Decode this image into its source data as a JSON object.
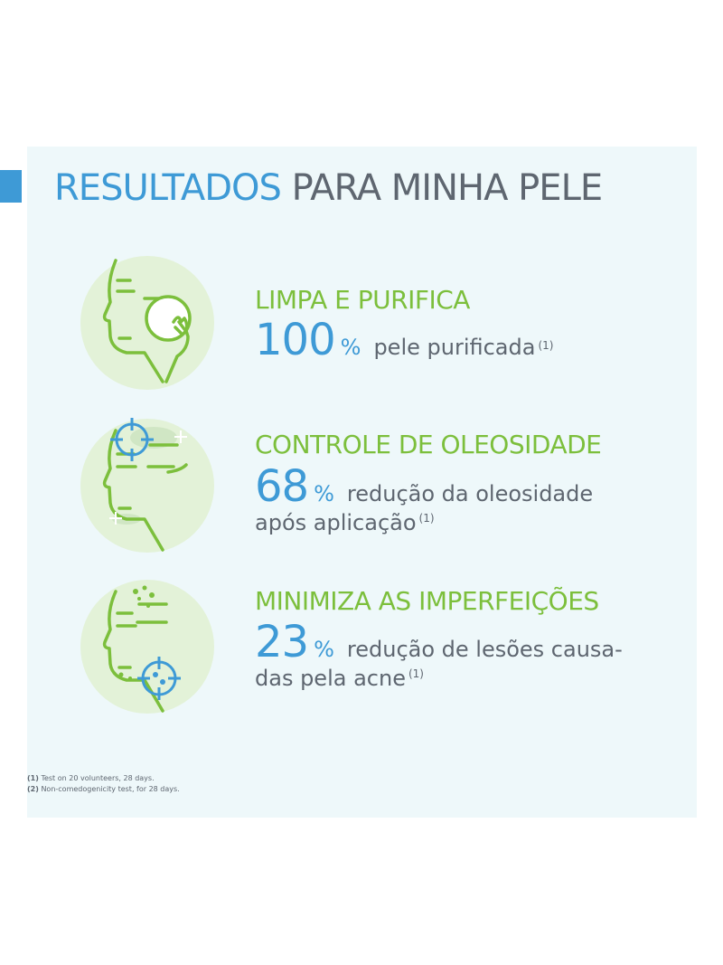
{
  "title": {
    "part1": "RESULTADOS",
    "part2": "PARA MINHA PELE"
  },
  "benefits": [
    {
      "heading": "LIMPA E PURIFICA",
      "number": "100",
      "percent": "%",
      "text": "pele purificada",
      "text2": "",
      "ref": "(1)"
    },
    {
      "heading": "CONTROLE DE OLEOSIDADE",
      "number": "68",
      "percent": "%",
      "text": "redução da oleosidade",
      "text2": "após aplicação",
      "ref": "(1)"
    },
    {
      "heading": "MINIMIZA AS IMPERFEIÇÕES",
      "number": "23",
      "percent": "%",
      "text": "redução de lesões causa-",
      "text2": "das pela acne",
      "ref": "(1)"
    }
  ],
  "footnotes": [
    {
      "ref": "(1)",
      "text": "Test on 20 volunteers, 28 days."
    },
    {
      "ref": "(2)",
      "text": "Non-comedogenicity test, for 28 days."
    }
  ],
  "colors": {
    "blue": "#3e9ad6",
    "green": "#7cbf3c",
    "gray": "#5e6670",
    "panel": "#eef8fa",
    "circle": "#e3f2d8"
  },
  "icons": [
    "face-cotton-pad-icon",
    "face-oil-target-icon",
    "face-blemish-target-icon"
  ]
}
